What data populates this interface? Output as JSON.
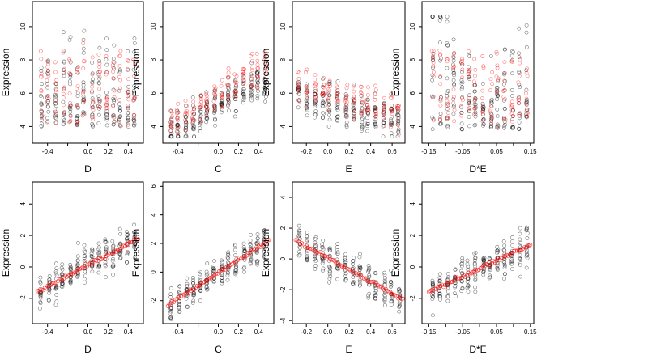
{
  "chart_data": [
    {
      "type": "scatter",
      "xlabel": "D",
      "ylabel": "Expression",
      "xlim": [
        -0.55,
        0.55
      ],
      "ylim": [
        3.0,
        11.5
      ],
      "xticks": [
        -0.4,
        -0.2,
        0.0,
        0.2,
        0.4
      ],
      "xtick_labels": [
        "-0.4",
        "",
        "0.0",
        "0.2",
        "0.4"
      ],
      "yticks": [
        4,
        6,
        8,
        10
      ],
      "ytick_labels": [
        "4",
        "6",
        "8",
        "10"
      ],
      "series": [
        {
          "color": "#000000",
          "marker": "open-circle"
        },
        {
          "color": "#ff0000",
          "marker": "open-circle"
        }
      ],
      "gen": {
        "xmin": -0.5,
        "xmax": 0.5,
        "bk": "wide",
        "rd": "wide",
        "ylo": 3.4,
        "yhi": 10.6
      }
    },
    {
      "type": "scatter",
      "xlabel": "C",
      "ylabel": "Expression",
      "xlim": [
        -0.55,
        0.55
      ],
      "ylim": [
        3.0,
        11.5
      ],
      "xticks": [
        -0.4,
        -0.2,
        0.0,
        0.2,
        0.4
      ],
      "xtick_labels": [
        "-0.4",
        "",
        "0.0",
        "0.2",
        "0.4"
      ],
      "yticks": [
        4,
        6,
        8,
        10
      ],
      "ytick_labels": [
        "4",
        "6",
        "8",
        "10"
      ],
      "series": [
        {
          "color": "#000000",
          "marker": "open-circle"
        },
        {
          "color": "#ff0000",
          "marker": "open-circle"
        }
      ],
      "gen": {
        "xmin": -0.5,
        "xmax": 0.5,
        "bk": [
          3.6,
          6.8
        ],
        "rd": [
          4.0,
          7.8
        ],
        "ylo": 3.4,
        "yhi": 10.6
      }
    },
    {
      "type": "scatter",
      "xlabel": "E",
      "ylabel": "Expression",
      "xlim": [
        -0.33,
        0.72
      ],
      "ylim": [
        3.0,
        11.5
      ],
      "xticks": [
        -0.2,
        0.0,
        0.2,
        0.4,
        0.6
      ],
      "xtick_labels": [
        "-0.2",
        "0.0",
        "0.2",
        "0.4",
        "0.6"
      ],
      "yticks": [
        4,
        6,
        8,
        10
      ],
      "ytick_labels": [
        "4",
        "6",
        "8",
        "10"
      ],
      "series": [
        {
          "color": "#000000",
          "marker": "open-circle"
        },
        {
          "color": "#ff0000",
          "marker": "open-circle"
        }
      ],
      "gen": {
        "xmin": -0.3,
        "xmax": 0.7,
        "bk": [
          6.0,
          4.2
        ],
        "rd": [
          6.5,
          4.8
        ],
        "ylo": 3.4,
        "yhi": 10.6
      }
    },
    {
      "type": "scatter",
      "xlabel": "D*E",
      "ylabel": "Expression",
      "xlim": [
        -0.17,
        0.16
      ],
      "ylim": [
        3.0,
        11.5
      ],
      "xticks": [
        -0.15,
        -0.1,
        -0.05,
        0.0,
        0.05,
        0.1,
        0.15
      ],
      "xtick_labels": [
        "-0.15",
        "",
        "-0.05",
        "",
        "0.05",
        "",
        "0.15"
      ],
      "yticks": [
        4,
        6,
        8,
        10
      ],
      "ytick_labels": [
        "4",
        "6",
        "8",
        "10"
      ],
      "series": [
        {
          "color": "#000000",
          "marker": "open-circle"
        },
        {
          "color": "#ff0000",
          "marker": "open-circle"
        }
      ],
      "gen": {
        "xmin": -0.15,
        "xmax": 0.15,
        "bk": "v",
        "rd": "wide",
        "ylo": 3.4,
        "yhi": 10.6
      }
    },
    {
      "type": "scatter",
      "xlabel": "D",
      "ylabel": "Expression",
      "xlim": [
        -0.55,
        0.55
      ],
      "ylim": [
        -3.6,
        5.4
      ],
      "xticks": [
        -0.4,
        -0.2,
        0.0,
        0.2,
        0.4
      ],
      "xtick_labels": [
        "-0.4",
        "",
        "0.0",
        "0.2",
        "0.4"
      ],
      "yticks": [
        -2,
        0,
        2,
        4
      ],
      "ytick_labels": [
        "-2",
        "0",
        "2",
        "4"
      ],
      "series": [
        {
          "color": "#000000",
          "marker": "open-circle"
        },
        {
          "color": "#ff0000",
          "marker": "open-circle",
          "fit": [
            -1.6,
            1.8
          ]
        }
      ],
      "gen": {
        "xmin": -0.5,
        "xmax": 0.5,
        "bk": [
          -1.6,
          1.8
        ],
        "rd": "line",
        "ylo": -3.3,
        "yhi": 5.0
      }
    },
    {
      "type": "scatter",
      "xlabel": "C",
      "ylabel": "Expression",
      "xlim": [
        -0.55,
        0.55
      ],
      "ylim": [
        -3.6,
        6.3
      ],
      "xticks": [
        -0.4,
        -0.2,
        0.0,
        0.2,
        0.4
      ],
      "xtick_labels": [
        "-0.4",
        "",
        "0.0",
        "0.2",
        "0.4"
      ],
      "yticks": [
        -2,
        0,
        2,
        4,
        6
      ],
      "ytick_labels": [
        "-2",
        "0",
        "2",
        "4",
        "6"
      ],
      "series": [
        {
          "color": "#000000",
          "marker": "open-circle"
        },
        {
          "color": "#ff0000",
          "marker": "open-circle",
          "fit": [
            -2.3,
            2.2
          ]
        }
      ],
      "gen": {
        "xmin": -0.5,
        "xmax": 0.5,
        "bk": [
          -2.3,
          2.2
        ],
        "rd": "line",
        "ylo": -3.3,
        "yhi": 6.0
      }
    },
    {
      "type": "scatter",
      "xlabel": "E",
      "ylabel": "Expression",
      "xlim": [
        -0.33,
        0.72
      ],
      "ylim": [
        -4.2,
        5.0
      ],
      "xticks": [
        -0.2,
        0.0,
        0.2,
        0.4,
        0.6
      ],
      "xtick_labels": [
        "-0.2",
        "0.0",
        "0.2",
        "0.4",
        "0.6"
      ],
      "yticks": [
        -4,
        -2,
        0,
        2,
        4
      ],
      "ytick_labels": [
        "-4",
        "-2",
        "0",
        "2",
        "4"
      ],
      "series": [
        {
          "color": "#000000",
          "marker": "open-circle"
        },
        {
          "color": "#ff0000",
          "marker": "open-circle",
          "fit": [
            1.2,
            -2.6
          ]
        }
      ],
      "gen": {
        "xmin": -0.3,
        "xmax": 0.7,
        "bk": [
          1.2,
          -2.6
        ],
        "rd": "line",
        "ylo": -4.0,
        "yhi": 4.7
      }
    },
    {
      "type": "scatter",
      "xlabel": "D*E",
      "ylabel": "Expression",
      "xlim": [
        -0.17,
        0.16
      ],
      "ylim": [
        -3.6,
        5.4
      ],
      "xticks": [
        -0.15,
        -0.1,
        -0.05,
        0.0,
        0.05,
        0.1,
        0.15
      ],
      "xtick_labels": [
        "-0.15",
        "",
        "-0.05",
        "",
        "0.05",
        "",
        "0.15"
      ],
      "yticks": [
        -2,
        0,
        2,
        4
      ],
      "ytick_labels": [
        "-2",
        "0",
        "2",
        "4"
      ],
      "series": [
        {
          "color": "#000000",
          "marker": "open-circle"
        },
        {
          "color": "#ff0000",
          "marker": "open-circle",
          "fit": [
            -1.6,
            1.4
          ]
        }
      ],
      "gen": {
        "xmin": -0.15,
        "xmax": 0.15,
        "bk": [
          -1.6,
          1.4
        ],
        "rd": "line",
        "ylo": -3.3,
        "yhi": 5.0
      }
    }
  ]
}
